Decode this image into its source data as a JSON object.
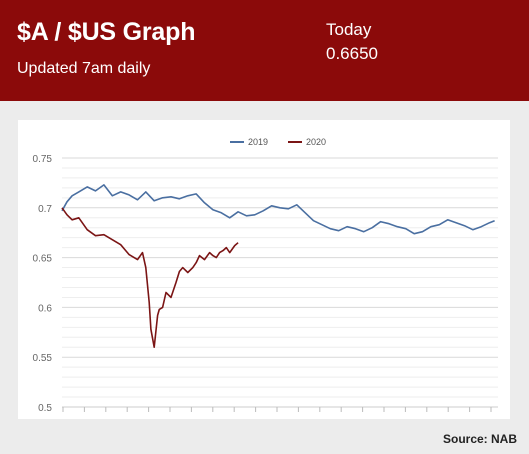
{
  "header": {
    "title": "$A / $US Graph",
    "subtitle": "Updated 7am daily",
    "today_label": "Today",
    "today_value": "0.6650"
  },
  "source": "Source: NAB",
  "colors": {
    "header_bg": "#8b0a0a",
    "series_2019": "#4a6fa1",
    "series_2020": "#7b1515",
    "panel_bg": "#ececec"
  },
  "chart_data": {
    "type": "line",
    "title": "",
    "xlabel": "",
    "ylabel": "",
    "ylim": [
      0.5,
      0.75
    ],
    "y_ticks": [
      "0.75",
      "0.7",
      "0.65",
      "0.6",
      "0.55",
      "0.5"
    ],
    "x_tick_count": 21,
    "grid": true,
    "legend_position": "top-center",
    "x_domain": [
      0,
      260
    ],
    "series": [
      {
        "name": "2019",
        "color": "#4a6fa1",
        "x": [
          0,
          3,
          6,
          10,
          15,
          20,
          25,
          30,
          35,
          40,
          45,
          50,
          55,
          60,
          65,
          70,
          75,
          80,
          85,
          90,
          95,
          100,
          105,
          110,
          115,
          120,
          125,
          130,
          135,
          140,
          145,
          150,
          155,
          160,
          165,
          170,
          175,
          180,
          185,
          190,
          195,
          200,
          205,
          210,
          215,
          220,
          225,
          230,
          235,
          240,
          245,
          250,
          255,
          258
        ],
        "values": [
          0.697,
          0.706,
          0.712,
          0.716,
          0.721,
          0.717,
          0.723,
          0.712,
          0.716,
          0.713,
          0.708,
          0.716,
          0.707,
          0.71,
          0.711,
          0.709,
          0.712,
          0.714,
          0.705,
          0.698,
          0.695,
          0.69,
          0.696,
          0.692,
          0.693,
          0.697,
          0.702,
          0.7,
          0.699,
          0.703,
          0.695,
          0.687,
          0.683,
          0.679,
          0.677,
          0.681,
          0.679,
          0.676,
          0.68,
          0.686,
          0.684,
          0.681,
          0.679,
          0.674,
          0.676,
          0.681,
          0.683,
          0.688,
          0.685,
          0.682,
          0.678,
          0.681,
          0.685,
          0.687
        ]
      },
      {
        "name": "2020",
        "color": "#7b1515",
        "x": [
          0,
          3,
          6,
          10,
          15,
          20,
          25,
          30,
          35,
          40,
          45,
          48,
          50,
          52,
          53,
          55,
          57,
          58,
          60,
          62,
          65,
          68,
          70,
          72,
          75,
          78,
          80,
          82,
          85,
          88,
          90,
          92,
          94,
          96,
          98,
          100,
          103,
          105
        ],
        "values": [
          0.7,
          0.693,
          0.688,
          0.69,
          0.678,
          0.672,
          0.673,
          0.668,
          0.663,
          0.653,
          0.648,
          0.655,
          0.64,
          0.605,
          0.578,
          0.56,
          0.592,
          0.598,
          0.6,
          0.615,
          0.61,
          0.625,
          0.636,
          0.64,
          0.635,
          0.64,
          0.645,
          0.652,
          0.648,
          0.655,
          0.652,
          0.65,
          0.655,
          0.657,
          0.66,
          0.655,
          0.662,
          0.665
        ]
      }
    ]
  }
}
